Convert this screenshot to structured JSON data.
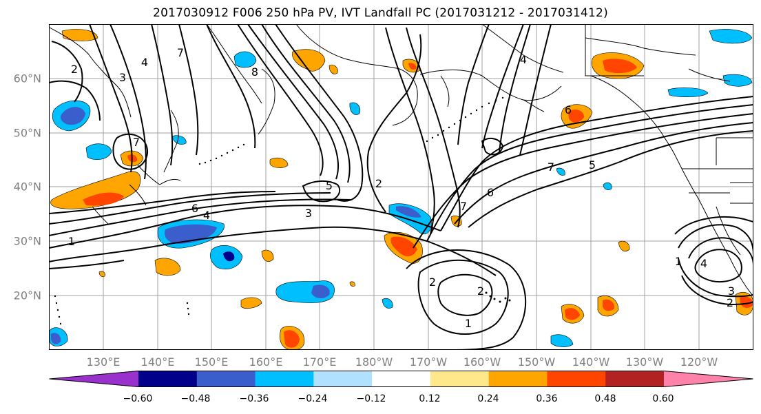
{
  "title": "2017030912 F006 250 hPa PV, IVT Landfall PC (2017031212 - 2017031412)",
  "lat_labels": [
    "60°N",
    "50°N",
    "40°N",
    "30°N",
    "20°N"
  ],
  "lon_labels": [
    "130°E",
    "140°E",
    "150°E",
    "160°E",
    "170°E",
    "180°W",
    "170°W",
    "160°W",
    "150°W",
    "140°W",
    "130°W",
    "120°W"
  ],
  "contour_labels": [
    "1",
    "2",
    "3",
    "4",
    "5",
    "6",
    "7",
    "8"
  ],
  "colorbar": {
    "ticks": [
      "−0.60",
      "−0.48",
      "−0.36",
      "−0.24",
      "−0.12",
      "0.12",
      "0.24",
      "0.36",
      "0.48",
      "0.60"
    ],
    "colors": [
      "#9932cc",
      "#00008b",
      "#3a5fcd",
      "#00bfff",
      "#b0e2ff",
      "#ffffff",
      "#ffe88a",
      "#ffa500",
      "#ff4500",
      "#b22222",
      "#ff82ab"
    ]
  },
  "colors": {
    "line": "#000000",
    "grid": "#a0a0a0",
    "axis_text": "#808080"
  }
}
